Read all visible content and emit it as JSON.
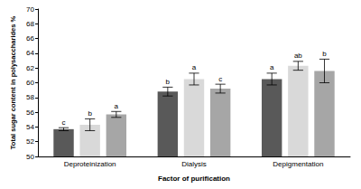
{
  "chart_data": {
    "type": "bar",
    "x_label": "Factor of purification",
    "y_label": "Total sugar content in polysaccharides %",
    "categories": [
      "Deproteinization",
      "Dialysis",
      "Depigmentation"
    ],
    "series": [
      {
        "color": "#595959",
        "values": [
          53.7,
          58.8,
          60.5
        ],
        "errors": [
          0.2,
          0.6,
          0.8
        ],
        "letters": [
          "c",
          "b",
          "a"
        ]
      },
      {
        "color": "#d9d9d9",
        "values": [
          54.3,
          60.5,
          62.3
        ],
        "errors": [
          0.8,
          0.8,
          0.6
        ],
        "letters": [
          "b",
          "a",
          "ab"
        ]
      },
      {
        "color": "#a6a6a6",
        "values": [
          55.7,
          59.2,
          61.6
        ],
        "errors": [
          0.4,
          0.6,
          1.6
        ],
        "letters": [
          "a",
          "c",
          "b"
        ]
      }
    ],
    "ylim": [
      50,
      70
    ],
    "yticks": [
      50,
      52,
      54,
      56,
      58,
      60,
      62,
      64,
      66,
      68,
      70
    ],
    "grid": false
  }
}
